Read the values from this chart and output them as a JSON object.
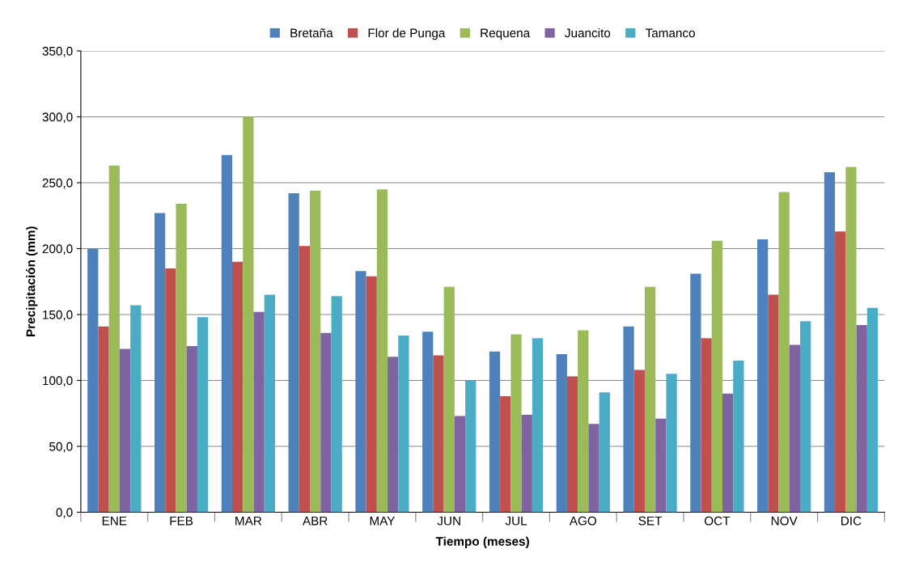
{
  "chart_data": {
    "type": "bar",
    "xlabel": "Tiempo (meses)",
    "ylabel": "Precipitación (mm)",
    "categories": [
      "ENE",
      "FEB",
      "MAR",
      "ABR",
      "MAY",
      "JUN",
      "JUL",
      "AGO",
      "SET",
      "OCT",
      "NOV",
      "DIC"
    ],
    "series": [
      {
        "name": "Bretaña",
        "color": "#4f81bd",
        "values": [
          200,
          227,
          271,
          242,
          183,
          137,
          122,
          120,
          141,
          181,
          207,
          258
        ]
      },
      {
        "name": "Flor de Punga",
        "color": "#c0504d",
        "values": [
          141,
          185,
          190,
          202,
          179,
          119,
          88,
          103,
          108,
          132,
          165,
          213
        ]
      },
      {
        "name": "Requena",
        "color": "#9bbb59",
        "values": [
          263,
          234,
          300,
          244,
          245,
          171,
          135,
          138,
          171,
          206,
          243,
          262
        ]
      },
      {
        "name": "Juancito",
        "color": "#8064a2",
        "values": [
          124,
          126,
          152,
          136,
          118,
          73,
          74,
          67,
          71,
          90,
          127,
          142
        ]
      },
      {
        "name": "Tamanco",
        "color": "#4bacc6",
        "values": [
          157,
          148,
          165,
          164,
          134,
          100,
          132,
          91,
          105,
          115,
          145,
          155
        ]
      }
    ],
    "ylim": [
      0,
      350
    ],
    "yticks": [
      {
        "value": 0,
        "label": "0,0"
      },
      {
        "value": 50,
        "label": "50,0"
      },
      {
        "value": 100,
        "label": "100,0"
      },
      {
        "value": 150,
        "label": "150,0"
      },
      {
        "value": 200,
        "label": "200,0"
      },
      {
        "value": 250,
        "label": "250,0"
      },
      {
        "value": 300,
        "label": "300,0"
      },
      {
        "value": 350,
        "label": "350,0"
      }
    ],
    "grid": "y",
    "legend": "top"
  }
}
